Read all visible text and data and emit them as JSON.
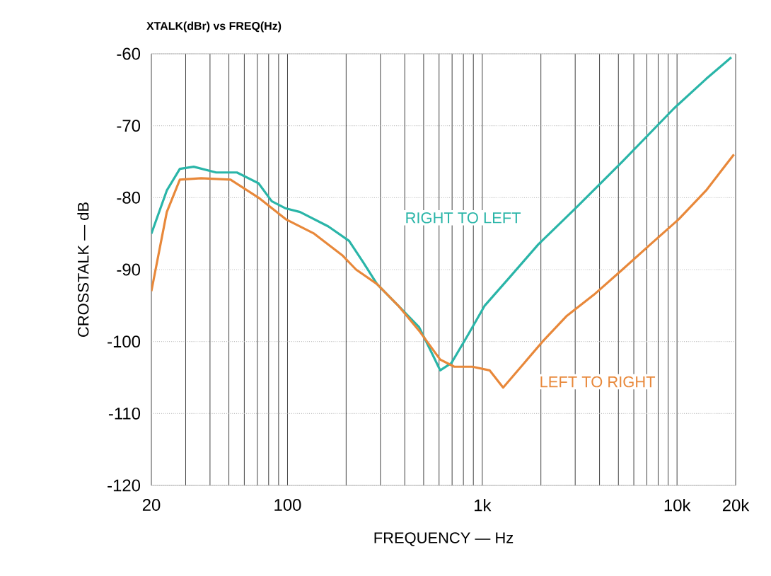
{
  "chart_data": {
    "type": "line",
    "title": "XTALK(dBr) vs FREQ(Hz)",
    "xlabel": "FREQUENCY — Hz",
    "ylabel": "CROSSTALK — dB",
    "log": "x",
    "grid": true,
    "legend": false,
    "xlim": [
      20,
      20000
    ],
    "ylim": [
      -120,
      -60
    ],
    "xticks": [
      20,
      100,
      {
        "value": 1000,
        "label": "1k"
      },
      {
        "value": 10000,
        "label": "10k"
      },
      {
        "value": 20000,
        "label": "20k"
      }
    ],
    "yticks": [
      -120,
      -110,
      -100,
      -90,
      -80,
      -70,
      -60
    ],
    "series": [
      {
        "name": "RIGHT TO LEFT",
        "color": "#2ab5a8",
        "x": [
          20,
          24,
          28,
          33,
          43,
          55,
          71,
          83,
          98,
          116,
          162,
          207,
          245,
          288,
          370,
          474,
          560,
          608,
          694,
          848,
          1030,
          1390,
          1940,
          3030,
          5240,
          9640,
          14100,
          19000
        ],
        "values": [
          -85,
          -79,
          -76,
          -75.7,
          -76.5,
          -76.5,
          -78,
          -80.5,
          -81.5,
          -82,
          -84,
          -86,
          -89,
          -92,
          -95,
          -98,
          -102,
          -104,
          -103,
          -99,
          -95,
          -91,
          -86.5,
          -81.4,
          -75,
          -67.6,
          -63.5,
          -60.5
        ]
      },
      {
        "name": "LEFT TO RIGHT",
        "color": "#e8883a",
        "x": [
          20,
          24,
          28,
          36,
          51,
          71,
          98,
          137,
          191,
          225,
          288,
          370,
          474,
          608,
          718,
          890,
          1090,
          1280,
          1640,
          2040,
          2700,
          3740,
          5240,
          7300,
          10200,
          14100,
          19600
        ],
        "values": [
          -93,
          -82,
          -77.5,
          -77.3,
          -77.5,
          -80,
          -83,
          -85,
          -88,
          -90,
          -92,
          -95,
          -98.5,
          -102.5,
          -103.5,
          -103.5,
          -104,
          -106.4,
          -103,
          -100,
          -96.5,
          -93.5,
          -90,
          -86.5,
          -83,
          -79,
          -74
        ]
      }
    ]
  }
}
